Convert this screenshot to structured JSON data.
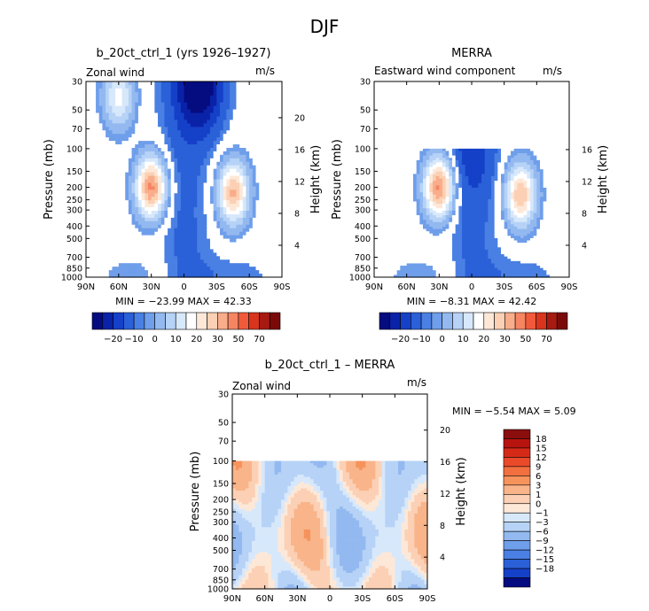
{
  "page_title": "DJF",
  "colors": {
    "positive_scale": [
      "#fde8d8",
      "#fbd0b4",
      "#f9ad8a",
      "#f68562",
      "#f05a3b",
      "#d8341e",
      "#a61a12"
    ],
    "negative_scale": [
      "#d7e8fb",
      "#b6d2f6",
      "#93b9f0",
      "#6f9eea",
      "#4a80e3",
      "#2a60d8",
      "#1540c8",
      "#0a22a8",
      "#040c80"
    ],
    "missing": "#ffffff"
  },
  "chart_data": [
    {
      "type": "contour",
      "id": "model",
      "title": "b_20ct_ctrl_1 (yrs 1926–1927)",
      "subtitle_left": "Zonal wind",
      "units": "m/s",
      "ylabel": "Pressure (mb)",
      "ylabel_right": "Height (km)",
      "x_ticks": [
        "90N",
        "60N",
        "30N",
        "0",
        "30S",
        "60S",
        "90S"
      ],
      "y_ticks": [
        "30",
        "50",
        "70",
        "100",
        "150",
        "200",
        "250",
        "300",
        "400",
        "500",
        "700",
        "850",
        "1000"
      ],
      "height_ticks": [
        "20",
        "16",
        "12",
        "8",
        "4"
      ],
      "stats": "MIN = −23.99   MAX =  42.33",
      "min": -23.99,
      "max": 42.33,
      "top_pressure": 30,
      "jets": [
        {
          "lat": 30,
          "p": 200,
          "amp": 42.3
        },
        {
          "lat": -45,
          "p": 220,
          "amp": 36
        },
        {
          "lat": 60,
          "p": 40,
          "amp": 22
        }
      ],
      "easterly": {
        "lat": -15,
        "p": 30,
        "amp": -24
      }
    },
    {
      "type": "contour",
      "id": "obs",
      "title": "MERRA",
      "subtitle_left": "Eastward wind component",
      "units": "m/s",
      "ylabel": "Pressure (mb)",
      "ylabel_right": "Height (km)",
      "x_ticks": [
        "90N",
        "60N",
        "30N",
        "0",
        "30S",
        "60S",
        "90S"
      ],
      "y_ticks": [
        "30",
        "50",
        "70",
        "100",
        "150",
        "200",
        "250",
        "300",
        "400",
        "500",
        "700",
        "850",
        "1000"
      ],
      "height_ticks": [
        "16",
        "12",
        "8",
        "4"
      ],
      "stats": "MIN =  −8.31   MAX =  42.42",
      "min": -8.31,
      "max": 42.42,
      "top_pressure": 100,
      "jets": [
        {
          "lat": 30,
          "p": 200,
          "amp": 42.4
        },
        {
          "lat": -45,
          "p": 230,
          "amp": 35
        }
      ],
      "easterly": {
        "lat": 0,
        "p": 100,
        "amp": -8
      }
    },
    {
      "type": "contour",
      "id": "diff",
      "title": "b_20ct_ctrl_1 – MERRA",
      "subtitle_left": "Zonal wind",
      "units": "m/s",
      "ylabel": "Pressure (mb)",
      "ylabel_right": "Height (km)",
      "x_ticks": [
        "90N",
        "60N",
        "30N",
        "0",
        "30S",
        "60S",
        "90S"
      ],
      "y_ticks": [
        "30",
        "50",
        "70",
        "100",
        "150",
        "200",
        "250",
        "300",
        "400",
        "500",
        "700",
        "850",
        "1000"
      ],
      "height_ticks": [
        "20",
        "16",
        "12",
        "8",
        "4"
      ],
      "stats": "MIN =   −5.54   MAX =    5.09",
      "min": -5.54,
      "max": 5.09,
      "top_pressure": 100
    }
  ],
  "colorbar_abs": {
    "labels": [
      "−20",
      "−10",
      "0",
      "10",
      "20",
      "30",
      "50",
      "70"
    ],
    "colors": [
      "#040c80",
      "#0a22a8",
      "#1540c8",
      "#2a60d8",
      "#4a80e3",
      "#6f9eea",
      "#93b9f0",
      "#b6d2f6",
      "#d7e8fb",
      "#ffffff",
      "#fde8d8",
      "#fbd0b4",
      "#f9ad8a",
      "#f68562",
      "#f05a3b",
      "#d8341e",
      "#a61a12",
      "#7a0a0a"
    ]
  },
  "colorbar_diff": {
    "labels": [
      "18",
      "15",
      "12",
      "9",
      "6",
      "3",
      "1",
      "0",
      "−1",
      "−3",
      "−6",
      "−9",
      "−12",
      "−15",
      "−18"
    ],
    "colors": [
      "#8a0e0e",
      "#b8140f",
      "#d62a18",
      "#ea4a2a",
      "#f2703f",
      "#f6935c",
      "#f9b48a",
      "#fbd0b4",
      "#fde8d8",
      "#d7e8fb",
      "#b6d2f6",
      "#93b9f0",
      "#6f9eea",
      "#4a80e3",
      "#2a60d8",
      "#1540c8",
      "#040c80"
    ]
  }
}
